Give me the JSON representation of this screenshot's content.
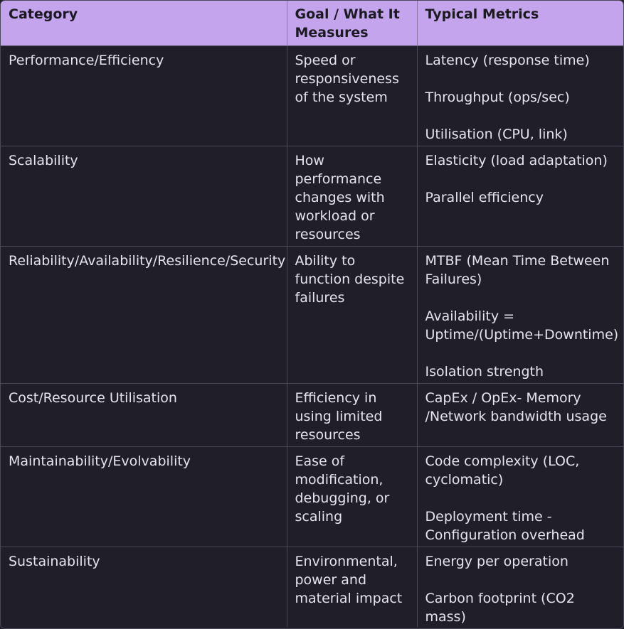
{
  "headers": [
    "Category",
    "Goal / What It Measures",
    "Typical Metrics"
  ],
  "rows": [
    {
      "category": "Performance/Efficiency",
      "goal": "Speed or responsiveness of the system",
      "metrics": [
        "Latency (response time)",
        "Throughput (ops/sec)",
        "Utilisation (CPU, link)"
      ]
    },
    {
      "category": "Scalability",
      "goal": "How performance changes with workload or resources",
      "metrics": [
        "Elasticity (load adaptation)",
        "Parallel efficiency"
      ]
    },
    {
      "category": "Reliability/Availability/Resilience/Security",
      "goal": "Ability to function despite failures",
      "metrics": [
        "MTBF (Mean Time Between Failures)",
        "Availability = Uptime/(Uptime+Downtime)",
        "Isolation strength"
      ]
    },
    {
      "category": "Cost/Resource Utilisation",
      "goal": "Efficiency in using limited resources",
      "metrics": [
        "CapEx / OpEx- Memory /Network bandwidth usage"
      ]
    },
    {
      "category": "Maintainability/Evolvability",
      "goal": "Ease of modification, debugging, or scaling",
      "metrics": [
        "Code complexity (LOC, cyclomatic)",
        "Deployment time - Configuration overhead"
      ]
    },
    {
      "category": "Sustainability",
      "goal": "Environmental, power and material impact",
      "metrics": [
        "Energy per operation",
        "Carbon footprint (CO2 mass)"
      ]
    }
  ]
}
